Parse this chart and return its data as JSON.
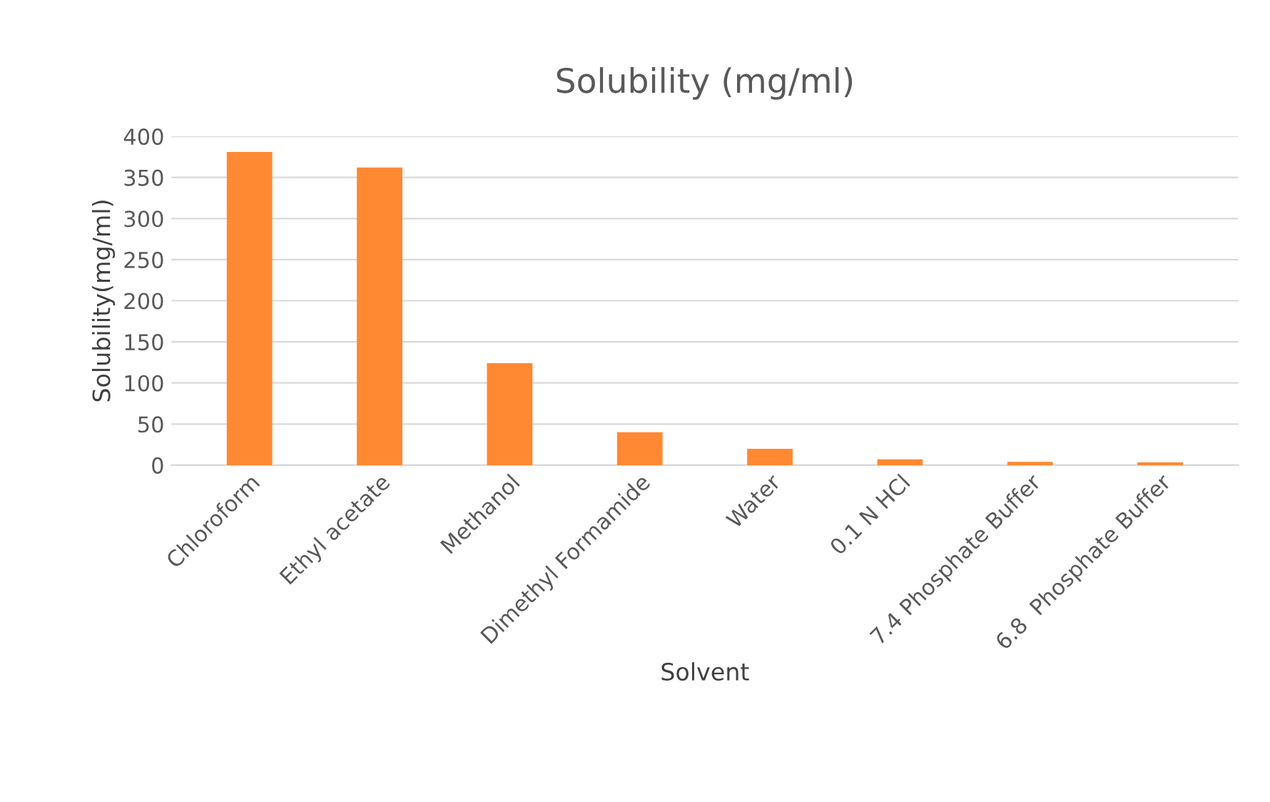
{
  "chart_data": {
    "type": "bar",
    "title": "Solubility (mg/ml)",
    "xlabel": "Solvent",
    "ylabel": "Solubility(mg/ml)",
    "categories": [
      "Chloroform",
      "Ethyl acetate",
      "Methanol",
      "Dimethyl Formamide",
      "Water",
      "0.1 N HCl",
      "7.4 Phosphate Buffer",
      "6.8  Phosphate Buffer"
    ],
    "values": [
      381,
      362,
      124,
      40,
      20,
      7,
      4,
      3.5
    ],
    "color": "#ff8833",
    "ylim": [
      0,
      400
    ],
    "yticks": [
      0,
      50,
      100,
      150,
      200,
      250,
      300,
      350,
      400
    ],
    "grid": "y",
    "legend": false
  }
}
